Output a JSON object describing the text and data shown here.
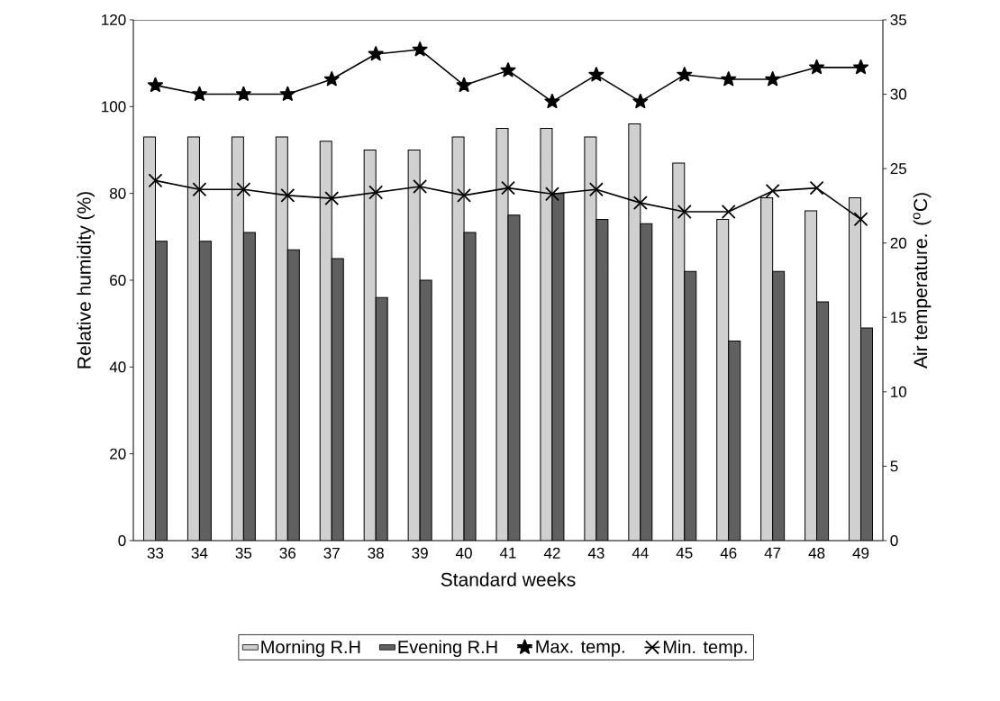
{
  "chart_data": {
    "type": "bar",
    "xlabel": "Standard weeks",
    "ylabel": "Relative humidity (%)",
    "y2label": "Air temperature. ($^{o}$C)",
    "categories": [
      "33",
      "34",
      "35",
      "36",
      "37",
      "38",
      "39",
      "40",
      "41",
      "42",
      "43",
      "44",
      "45",
      "46",
      "47",
      "48",
      "49"
    ],
    "series": [
      {
        "name": "Morning R.H",
        "color": "#d0d0d0",
        "values": [
          93,
          93,
          93,
          93,
          92,
          90,
          90,
          93,
          95,
          95,
          93,
          96,
          87,
          74,
          79,
          76,
          79
        ]
      },
      {
        "name": "Evening R.H",
        "color": "#606060",
        "values": [
          69,
          69,
          71,
          67,
          65,
          56,
          60,
          71,
          75,
          80,
          74,
          73,
          62,
          46,
          62,
          55,
          49
        ]
      },
      {
        "name": "Max. temp.",
        "type": "line",
        "axis": "y2",
        "marker": "star",
        "color": "#000000",
        "values": [
          30.6,
          30.0,
          30.0,
          30.0,
          31.0,
          32.7,
          33.0,
          30.6,
          31.6,
          29.5,
          31.3,
          29.5,
          31.3,
          31.0,
          31.0,
          31.8,
          31.8
        ]
      },
      {
        "name": "Min. temp.",
        "type": "line",
        "axis": "y2",
        "marker": "cross",
        "color": "#000000",
        "values": [
          24.2,
          23.6,
          23.6,
          23.2,
          23.0,
          23.4,
          23.8,
          23.2,
          23.7,
          23.3,
          23.6,
          22.7,
          22.1,
          22.1,
          23.5,
          23.7,
          21.6
        ]
      }
    ],
    "ylim": [
      0,
      120
    ],
    "yticks": [
      0,
      20,
      40,
      60,
      80,
      100,
      120
    ],
    "y2lim": [
      0,
      35
    ],
    "y2ticks": [
      0,
      5,
      10,
      15,
      20,
      25,
      30,
      35
    ],
    "grid": false,
    "legend": "bottom"
  }
}
